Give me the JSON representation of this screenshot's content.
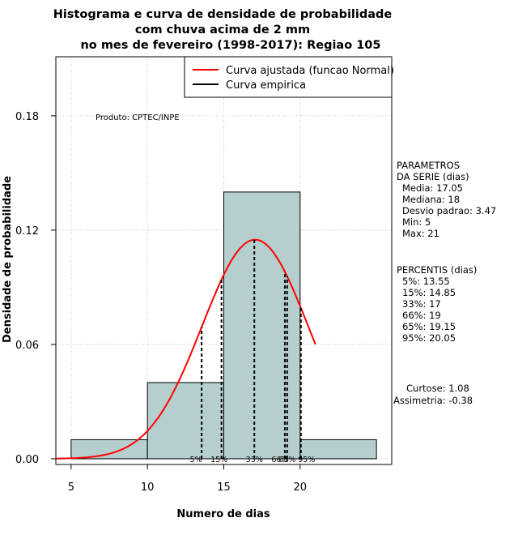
{
  "chart_data": {
    "type": "histogram",
    "title": [
      "Histograma e curva de densidade de probabilidade",
      "com chuva acima de 2 mm",
      "no mes de fevereiro (1998-2017): Regiao 105"
    ],
    "xlabel": "Numero de dias",
    "ylabel": "Densidade de probabilidade",
    "xlim": [
      4,
      26
    ],
    "ylim": [
      -0.003,
      0.211
    ],
    "x_ticks": [
      5,
      10,
      15,
      20
    ],
    "y_ticks": [
      0.0,
      0.06,
      0.12,
      0.18
    ],
    "y_tick_labels": [
      "0.00",
      "0.06",
      "0.12",
      "0.18"
    ],
    "grid": true,
    "bins": [
      {
        "from": 5,
        "to": 10,
        "density": 0.01
      },
      {
        "from": 10,
        "to": 15,
        "density": 0.04
      },
      {
        "from": 15,
        "to": 20,
        "density": 0.14
      },
      {
        "from": 20,
        "to": 25,
        "density": 0.01
      }
    ],
    "bar_color": "#b5cfcf",
    "normal_fit": {
      "mean": 17.05,
      "sd": 3.47,
      "x_range": [
        4,
        21
      ],
      "color": "#ff0000"
    },
    "percentile_lines": [
      {
        "x": 13.55,
        "label": "5%"
      },
      {
        "x": 14.85,
        "label": "15%"
      },
      {
        "x": 17,
        "label": "33%"
      },
      {
        "x": 19,
        "label": "66%"
      },
      {
        "x": 19.15,
        "label": "65%"
      },
      {
        "x": 20.05,
        "label": "95%"
      }
    ],
    "legend": {
      "position": "top-right",
      "entries": [
        {
          "label": "Curva ajustada (funcao Normal)",
          "color": "#ff0000"
        },
        {
          "label": "Curva empirica",
          "color": "#000000"
        }
      ]
    },
    "annotations": {
      "produto": "Produto: CPTEC/INPE",
      "parametros": [
        "PARAMETROS",
        "DA SERIE (dias)",
        "Media: 17.05",
        "Mediana: 18",
        "Desvio padrao: 3.47",
        "Min: 5",
        "Max: 21"
      ],
      "percentis": [
        "PERCENTIS (dias)",
        "5%: 13.55",
        "15%: 14.85",
        "33%: 17",
        "66%: 19",
        "65%: 19.15",
        "95%: 20.05"
      ],
      "forma": [
        "Curtose: 1.08",
        "Assimetria: -0.38"
      ]
    }
  }
}
